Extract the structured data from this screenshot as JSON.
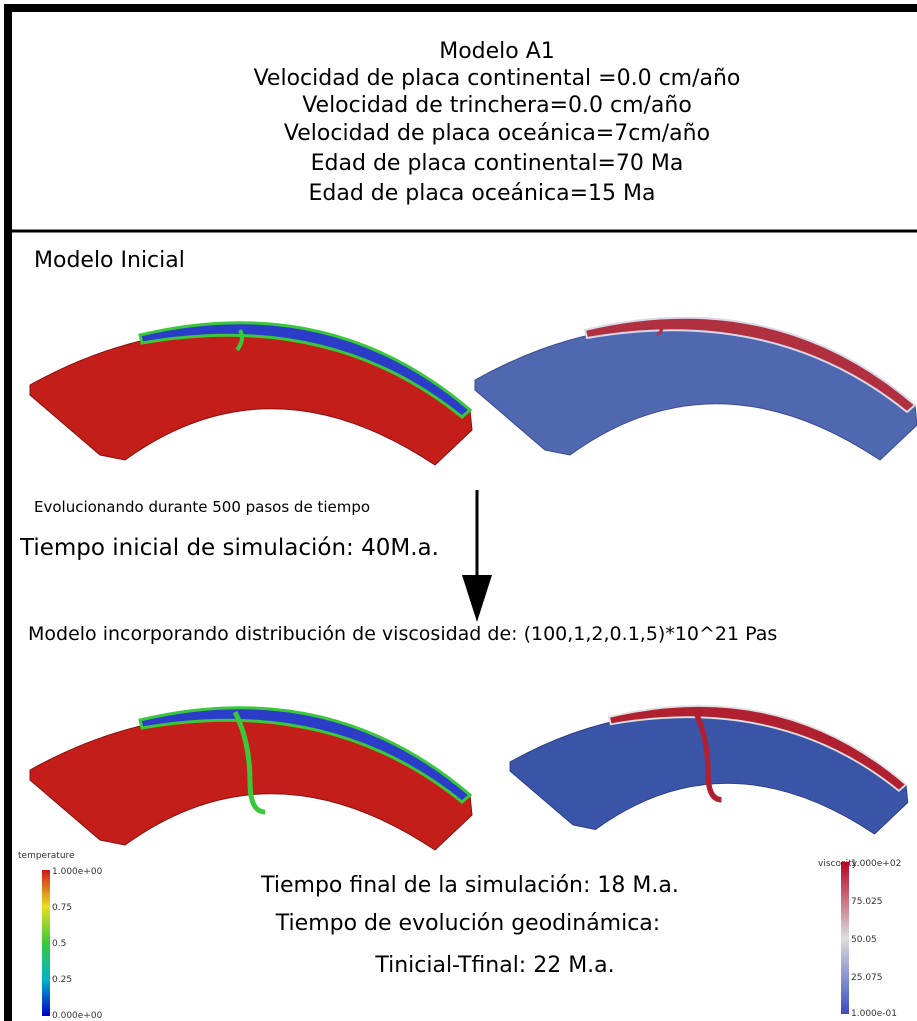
{
  "header": {
    "title": "Modelo A1",
    "lines": [
      "Velocidad de placa continental =0.0 cm/año",
      "Velocidad de trinchera=0.0 cm/año",
      "Velocidad de placa oceánica=7cm/año",
      "Edad de placa continental=70 Ma",
      "Edad de placa oceánica=15 Ma"
    ]
  },
  "initial_section": {
    "label": "Modelo Inicial"
  },
  "evolution_note": "Evolucionando durante 500 pasos de tiempo",
  "initial_time": "Tiempo inicial de simulación: 40M.a.",
  "model_note": "Modelo incorporando distribución de viscosidad de: (100,1,2,0.1,5)*10^21 Pas",
  "final_text": [
    "Tiempo final de la simulación: 18 M.a.",
    "Tiempo de evolución geodinámica:",
    "Tinicial-Tfinal: 22 M.a."
  ],
  "temperature_legend": {
    "title": "temperature",
    "labels": [
      "1.000e+00",
      "0.75",
      "0.5",
      "0.25",
      "0.000e+00"
    ]
  },
  "viscosity_legend": {
    "title": "viscosity",
    "labels": [
      "1.000e+02",
      "75.025",
      "50.05",
      "25.075",
      "1.000e-01"
    ]
  }
}
